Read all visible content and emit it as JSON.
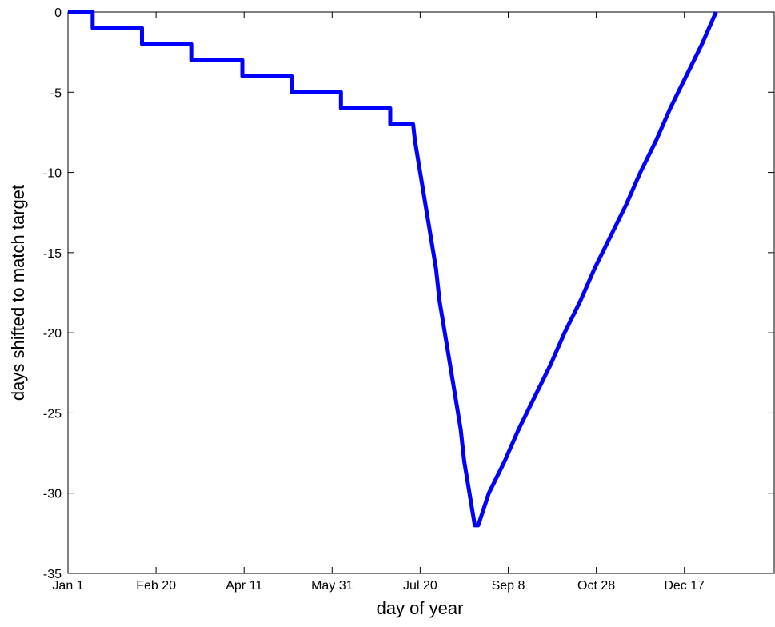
{
  "chart_data": {
    "type": "line",
    "xlabel": "day of year",
    "ylabel": "days shifted to match target",
    "xlim": [
      1,
      402
    ],
    "ylim": [
      -35,
      0
    ],
    "xticks": [
      {
        "value": 1,
        "label": "Jan 1"
      },
      {
        "value": 51,
        "label": "Feb 20"
      },
      {
        "value": 101,
        "label": "Apr 11"
      },
      {
        "value": 151,
        "label": "May 31"
      },
      {
        "value": 201,
        "label": "Jul 20"
      },
      {
        "value": 251,
        "label": "Sep 8"
      },
      {
        "value": 301,
        "label": "Oct 28"
      },
      {
        "value": 351,
        "label": "Dec 17"
      }
    ],
    "yticks": [
      -35,
      -30,
      -25,
      -20,
      -15,
      -10,
      -5,
      0
    ],
    "series": [
      {
        "color": "#0000ff",
        "x": [
          1,
          15,
          15,
          43,
          43,
          71,
          71,
          100,
          100,
          128,
          128,
          156,
          156,
          184,
          184,
          197,
          198,
          201,
          204,
          207,
          210,
          212,
          215,
          218,
          221,
          224,
          226,
          229,
          232,
          234,
          240,
          249,
          257,
          266,
          275,
          283,
          292,
          300,
          309,
          318,
          326,
          335,
          343,
          352,
          361,
          369
        ],
        "values": [
          0,
          0,
          -1,
          -1,
          -2,
          -2,
          -3,
          -3,
          -4,
          -4,
          -5,
          -5,
          -6,
          -6,
          -7,
          -7,
          -8,
          -10,
          -12,
          -14,
          -16,
          -18,
          -20,
          -22,
          -24,
          -26,
          -28,
          -30,
          -32,
          -32,
          -30,
          -28,
          -26,
          -24,
          -22,
          -20,
          -18,
          -16,
          -14,
          -12,
          -10,
          -8,
          -6,
          -4,
          -2,
          0
        ]
      }
    ]
  }
}
